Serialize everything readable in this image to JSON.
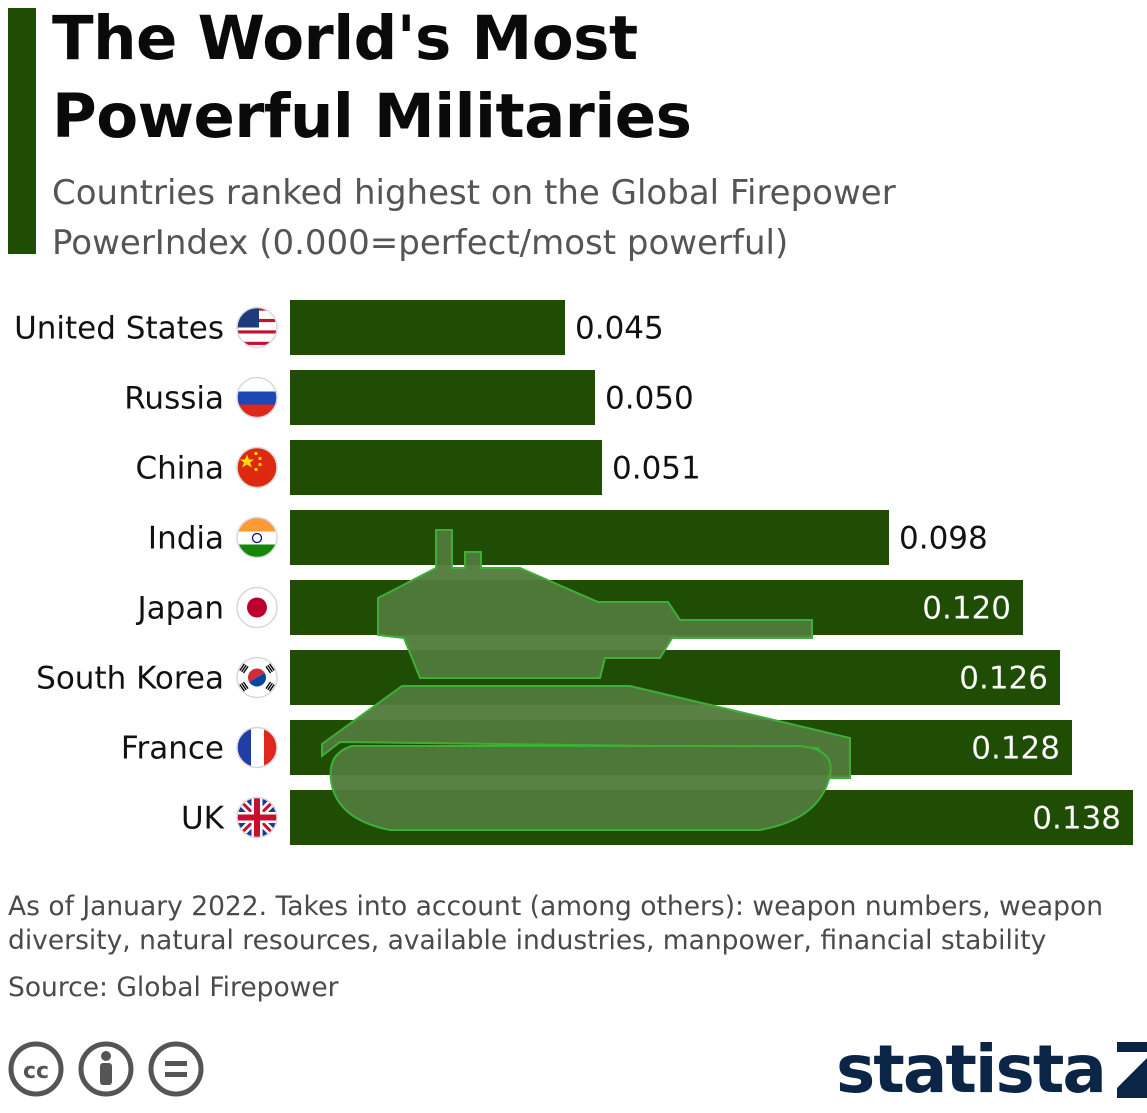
{
  "header": {
    "title_line1": "The World's Most",
    "title_line2": "Powerful Militaries",
    "subtitle_line1": "Countries ranked highest on the Global Firepower",
    "subtitle_line2": "PowerIndex (0.000=perfect/most powerful)"
  },
  "colors": {
    "accent": "#1f4d03",
    "bar": "#1f4d03",
    "tank": "#507a3a",
    "tank_outline": "#3fae38",
    "logo": "#0b2546"
  },
  "chart_data": {
    "type": "bar",
    "orientation": "horizontal",
    "categories": [
      "United States",
      "Russia",
      "China",
      "India",
      "Japan",
      "South Korea",
      "France",
      "UK"
    ],
    "values": [
      0.045,
      0.05,
      0.051,
      0.098,
      0.12,
      0.126,
      0.128,
      0.138
    ],
    "value_labels": [
      "0.045",
      "0.050",
      "0.051",
      "0.098",
      "0.120",
      "0.126",
      "0.128",
      "0.138"
    ],
    "flags": [
      "us-flag-icon",
      "russia-flag-icon",
      "china-flag-icon",
      "india-flag-icon",
      "japan-flag-icon",
      "south-korea-flag-icon",
      "france-flag-icon",
      "uk-flag-icon"
    ],
    "xlim": [
      0,
      0.138
    ],
    "grid": false,
    "decoration": "tank-silhouette"
  },
  "footer": {
    "note_line1": "As of January 2022. Takes into account (among others): weapon numbers, weapon",
    "note_line2": "diversity, natural resources, available industries, manpower, financial stability",
    "source": "Source: Global Firepower",
    "brand": "statista",
    "license_icons": [
      "cc-icon",
      "attribution-icon",
      "no-derivatives-icon"
    ]
  }
}
